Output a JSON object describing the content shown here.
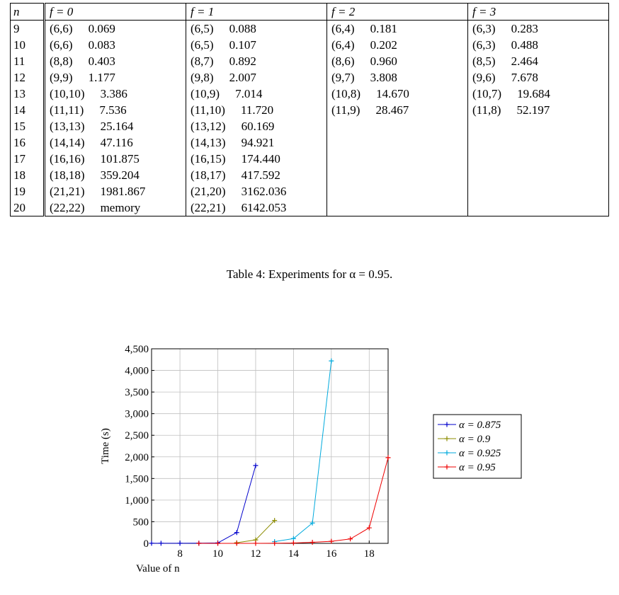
{
  "table": {
    "headers": [
      "n",
      "f = 0",
      "f = 1",
      "f = 2",
      "f = 3"
    ],
    "rows": [
      {
        "n": "9",
        "cells": [
          [
            "(6,6)",
            "0.069"
          ],
          [
            "(6,5)",
            "0.088"
          ],
          [
            "(6,4)",
            "0.181"
          ],
          [
            "(6,3)",
            "0.283"
          ]
        ]
      },
      {
        "n": "10",
        "cells": [
          [
            "(6,6)",
            "0.083"
          ],
          [
            "(6,5)",
            "0.107"
          ],
          [
            "(6,4)",
            "0.202"
          ],
          [
            "(6,3)",
            "0.488"
          ]
        ]
      },
      {
        "n": "11",
        "cells": [
          [
            "(8,8)",
            "0.403"
          ],
          [
            "(8,7)",
            "0.892"
          ],
          [
            "(8,6)",
            "0.960"
          ],
          [
            "(8,5)",
            "2.464"
          ]
        ]
      },
      {
        "n": "12",
        "cells": [
          [
            "(9,9)",
            "1.177"
          ],
          [
            "(9,8)",
            "2.007"
          ],
          [
            "(9,7)",
            "3.808"
          ],
          [
            "(9,6)",
            "7.678"
          ]
        ]
      },
      {
        "n": "13",
        "cells": [
          [
            "(10,10)",
            "3.386"
          ],
          [
            "(10,9)",
            "7.014"
          ],
          [
            "(10,8)",
            "14.670"
          ],
          [
            "(10,7)",
            "19.684"
          ]
        ]
      },
      {
        "n": "14",
        "cells": [
          [
            "(11,11)",
            "7.536"
          ],
          [
            "(11,10)",
            "11.720"
          ],
          [
            "(11,9)",
            "28.467"
          ],
          [
            "(11,8)",
            "52.197"
          ]
        ]
      },
      {
        "n": "15",
        "cells": [
          [
            "(13,13)",
            "25.164"
          ],
          [
            "(13,12)",
            "60.169"
          ],
          [
            "",
            ""
          ],
          [
            "",
            ""
          ]
        ]
      },
      {
        "n": "16",
        "cells": [
          [
            "(14,14)",
            "47.116"
          ],
          [
            "(14,13)",
            "94.921"
          ],
          [
            "",
            ""
          ],
          [
            "",
            ""
          ]
        ]
      },
      {
        "n": "17",
        "cells": [
          [
            "(16,16)",
            "101.875"
          ],
          [
            "(16,15)",
            "174.440"
          ],
          [
            "",
            ""
          ],
          [
            "",
            ""
          ]
        ]
      },
      {
        "n": "18",
        "cells": [
          [
            "(18,18)",
            "359.204"
          ],
          [
            "(18,17)",
            "417.592"
          ],
          [
            "",
            ""
          ],
          [
            "",
            ""
          ]
        ]
      },
      {
        "n": "19",
        "cells": [
          [
            "(21,21)",
            "1981.867"
          ],
          [
            "(21,20)",
            "3162.036"
          ],
          [
            "",
            ""
          ],
          [
            "",
            ""
          ]
        ]
      },
      {
        "n": "20",
        "cells": [
          [
            "(22,22)",
            "memory"
          ],
          [
            "(22,21)",
            "6142.053"
          ],
          [
            "",
            ""
          ],
          [
            "",
            ""
          ]
        ]
      }
    ]
  },
  "caption": "Table 4: Experiments for α = 0.95.",
  "chart_data": {
    "type": "line",
    "xlabel": "Value of n",
    "ylabel": "Time (s)",
    "xlim": [
      6.5,
      19
    ],
    "ylim": [
      0,
      4500
    ],
    "xticks": [
      8,
      10,
      12,
      14,
      16,
      18
    ],
    "yticks": [
      0,
      500,
      1000,
      1500,
      2000,
      2500,
      3000,
      3500,
      4000,
      4500
    ],
    "ytick_labels": [
      "0",
      "500",
      "1,000",
      "1,500",
      "2,000",
      "2,500",
      "3,000",
      "3,500",
      "4,000",
      "4,500"
    ],
    "grid": true,
    "legend_position": "right",
    "series": [
      {
        "name": "α = 0.875",
        "color": "#0000cc",
        "x": [
          6.5,
          7,
          8,
          9,
          10,
          11,
          12
        ],
        "y": [
          2,
          2,
          3,
          5,
          10,
          250,
          1800
        ]
      },
      {
        "name": "α = 0.9",
        "color": "#8c8c00",
        "x": [
          11,
          12,
          13
        ],
        "y": [
          15,
          80,
          530
        ]
      },
      {
        "name": "α = 0.925",
        "color": "#00aadd",
        "x": [
          13,
          14,
          15,
          16
        ],
        "y": [
          40,
          110,
          470,
          4220
        ]
      },
      {
        "name": "α = 0.95",
        "color": "#ee0000",
        "x": [
          9,
          10,
          11,
          12,
          13,
          14,
          15,
          16,
          17,
          18,
          19
        ],
        "y": [
          0.1,
          0.1,
          0.4,
          1,
          3,
          8,
          25,
          47,
          102,
          359,
          1982
        ]
      }
    ]
  }
}
